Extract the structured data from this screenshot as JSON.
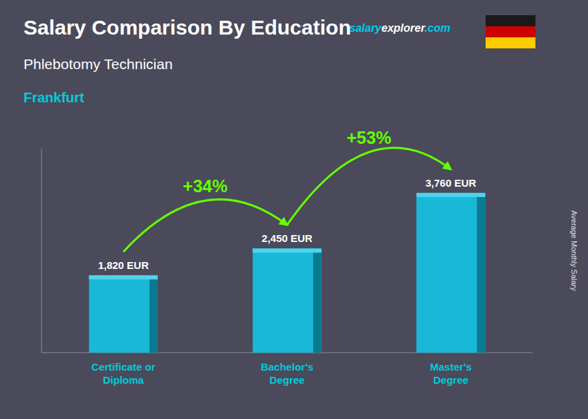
{
  "chart_data": {
    "type": "bar",
    "title": "Salary Comparison By Education",
    "subtitle": "Phlebotomy Technician",
    "ylabel": "Average Monthly Salary",
    "categories": [
      "Certificate or\nDiploma",
      "Bachelor's\nDegree",
      "Master's\nDegree"
    ],
    "values": [
      1820,
      2450,
      3760
    ],
    "value_labels": [
      "1,820 EUR",
      "2,450 EUR",
      "3,760 EUR"
    ],
    "data_labels": true,
    "color": "#1ab8d8",
    "ylim": [
      0,
      4800
    ],
    "tick_labels": "x",
    "grid": false,
    "annotations": [
      "Frankfurt",
      "+34%",
      "+53%",
      "salaryexplorer.com"
    ]
  }
}
